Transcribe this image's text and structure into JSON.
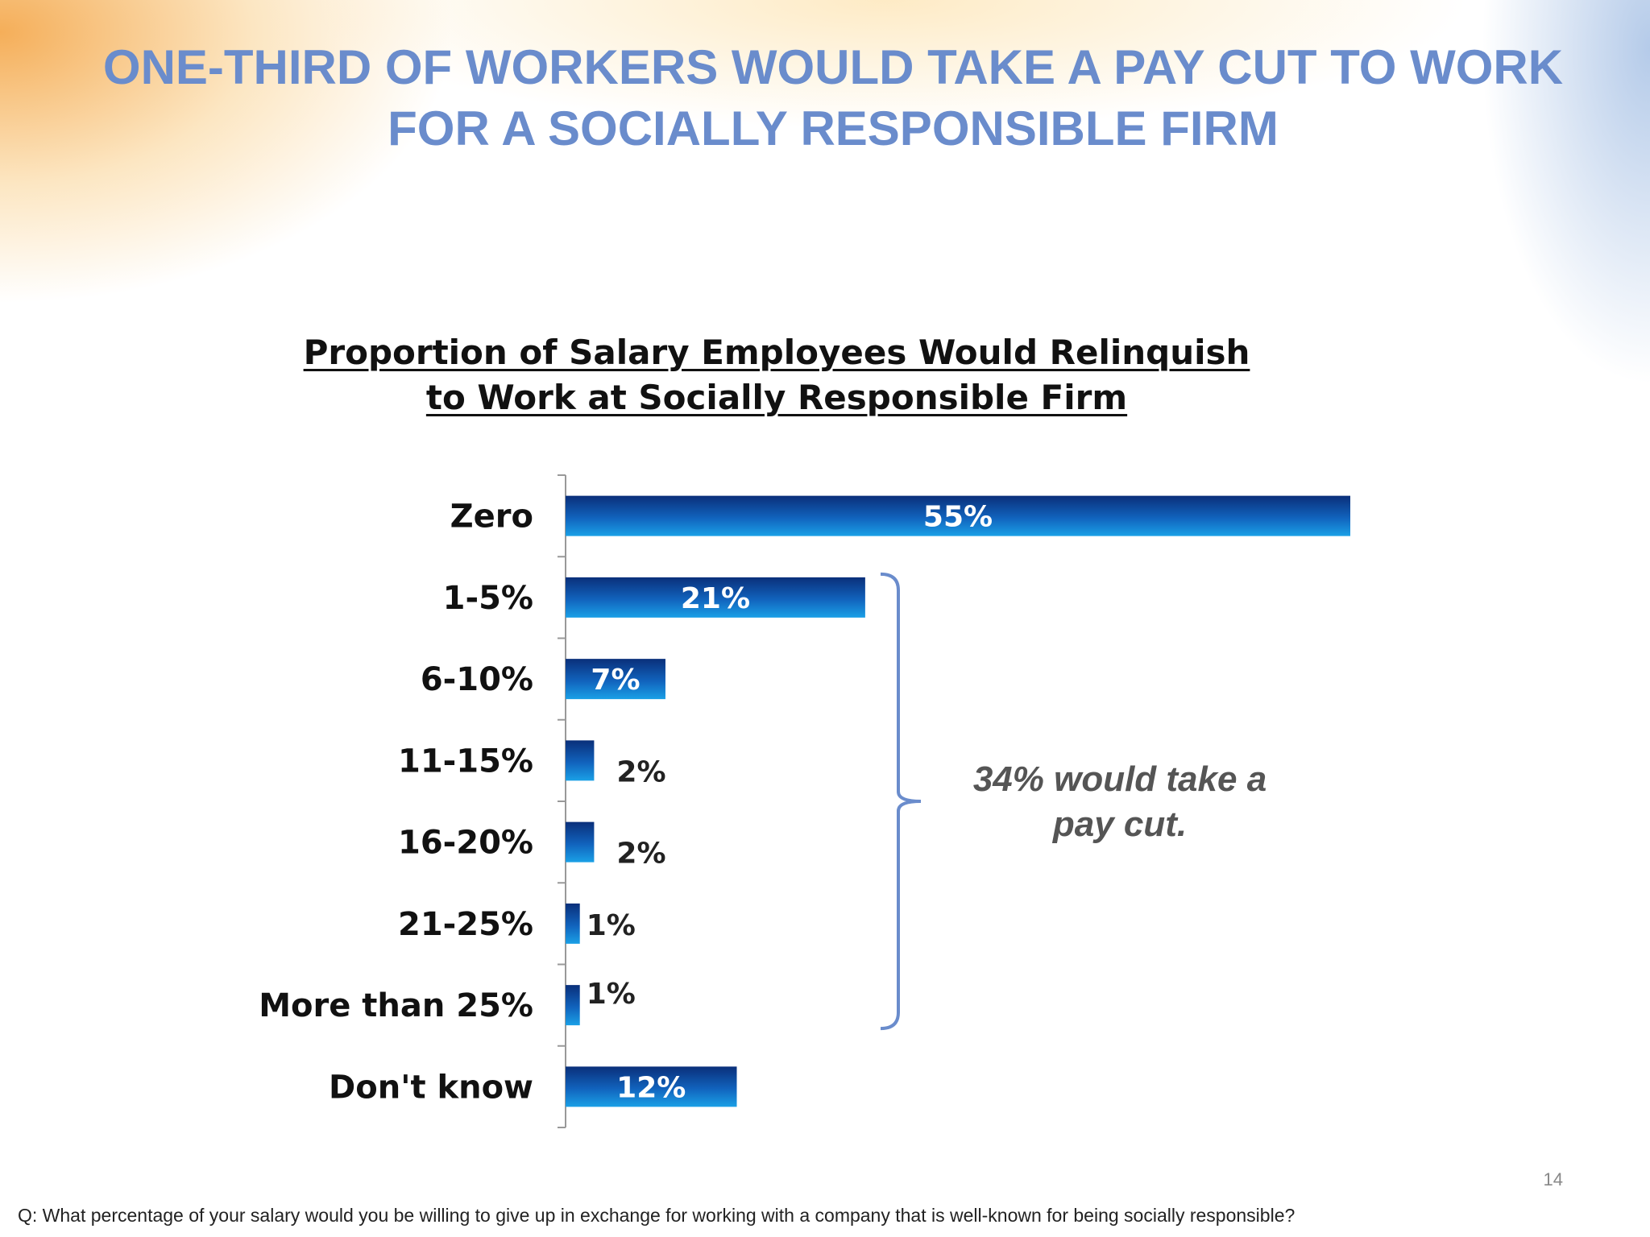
{
  "slide": {
    "title_line1": "ONE-THIRD OF WORKERS WOULD TAKE A PAY CUT TO WORK",
    "title_line2": "FOR A SOCIALLY RESPONSIBLE FIRM",
    "page_number": "14",
    "footnote": "Q: What percentage of your salary would you be willing to give up in exchange for working with a company that is well-known for being socially responsible?"
  },
  "annotation": {
    "line1": "34% would take a",
    "line2": "pay cut."
  },
  "chart_data": {
    "type": "bar",
    "orientation": "horizontal",
    "title_line1": "Proportion of Salary Employees Would Relinquish",
    "title_line2": "to Work at Socially Responsible Firm",
    "categories": [
      "Zero",
      "1-5%",
      "6-10%",
      "11-15%",
      "16-20%",
      "21-25%",
      "More than 25%",
      "Don't know"
    ],
    "values": [
      55,
      21,
      7,
      2,
      2,
      1,
      1,
      12
    ],
    "data_labels": [
      "55%",
      "21%",
      "7%",
      "2%",
      "2%",
      "1%",
      "1%",
      "12%"
    ],
    "unit": "%",
    "xlim": [
      0,
      55
    ],
    "grid": false,
    "legend": "none",
    "bracket_range": [
      "1-5%",
      "More than 25%"
    ],
    "colors": {
      "bar_dark": "#0a2f7a",
      "bar_light": "#1aa0e6",
      "bracket": "#6a8ccc",
      "axis": "#999999"
    }
  }
}
